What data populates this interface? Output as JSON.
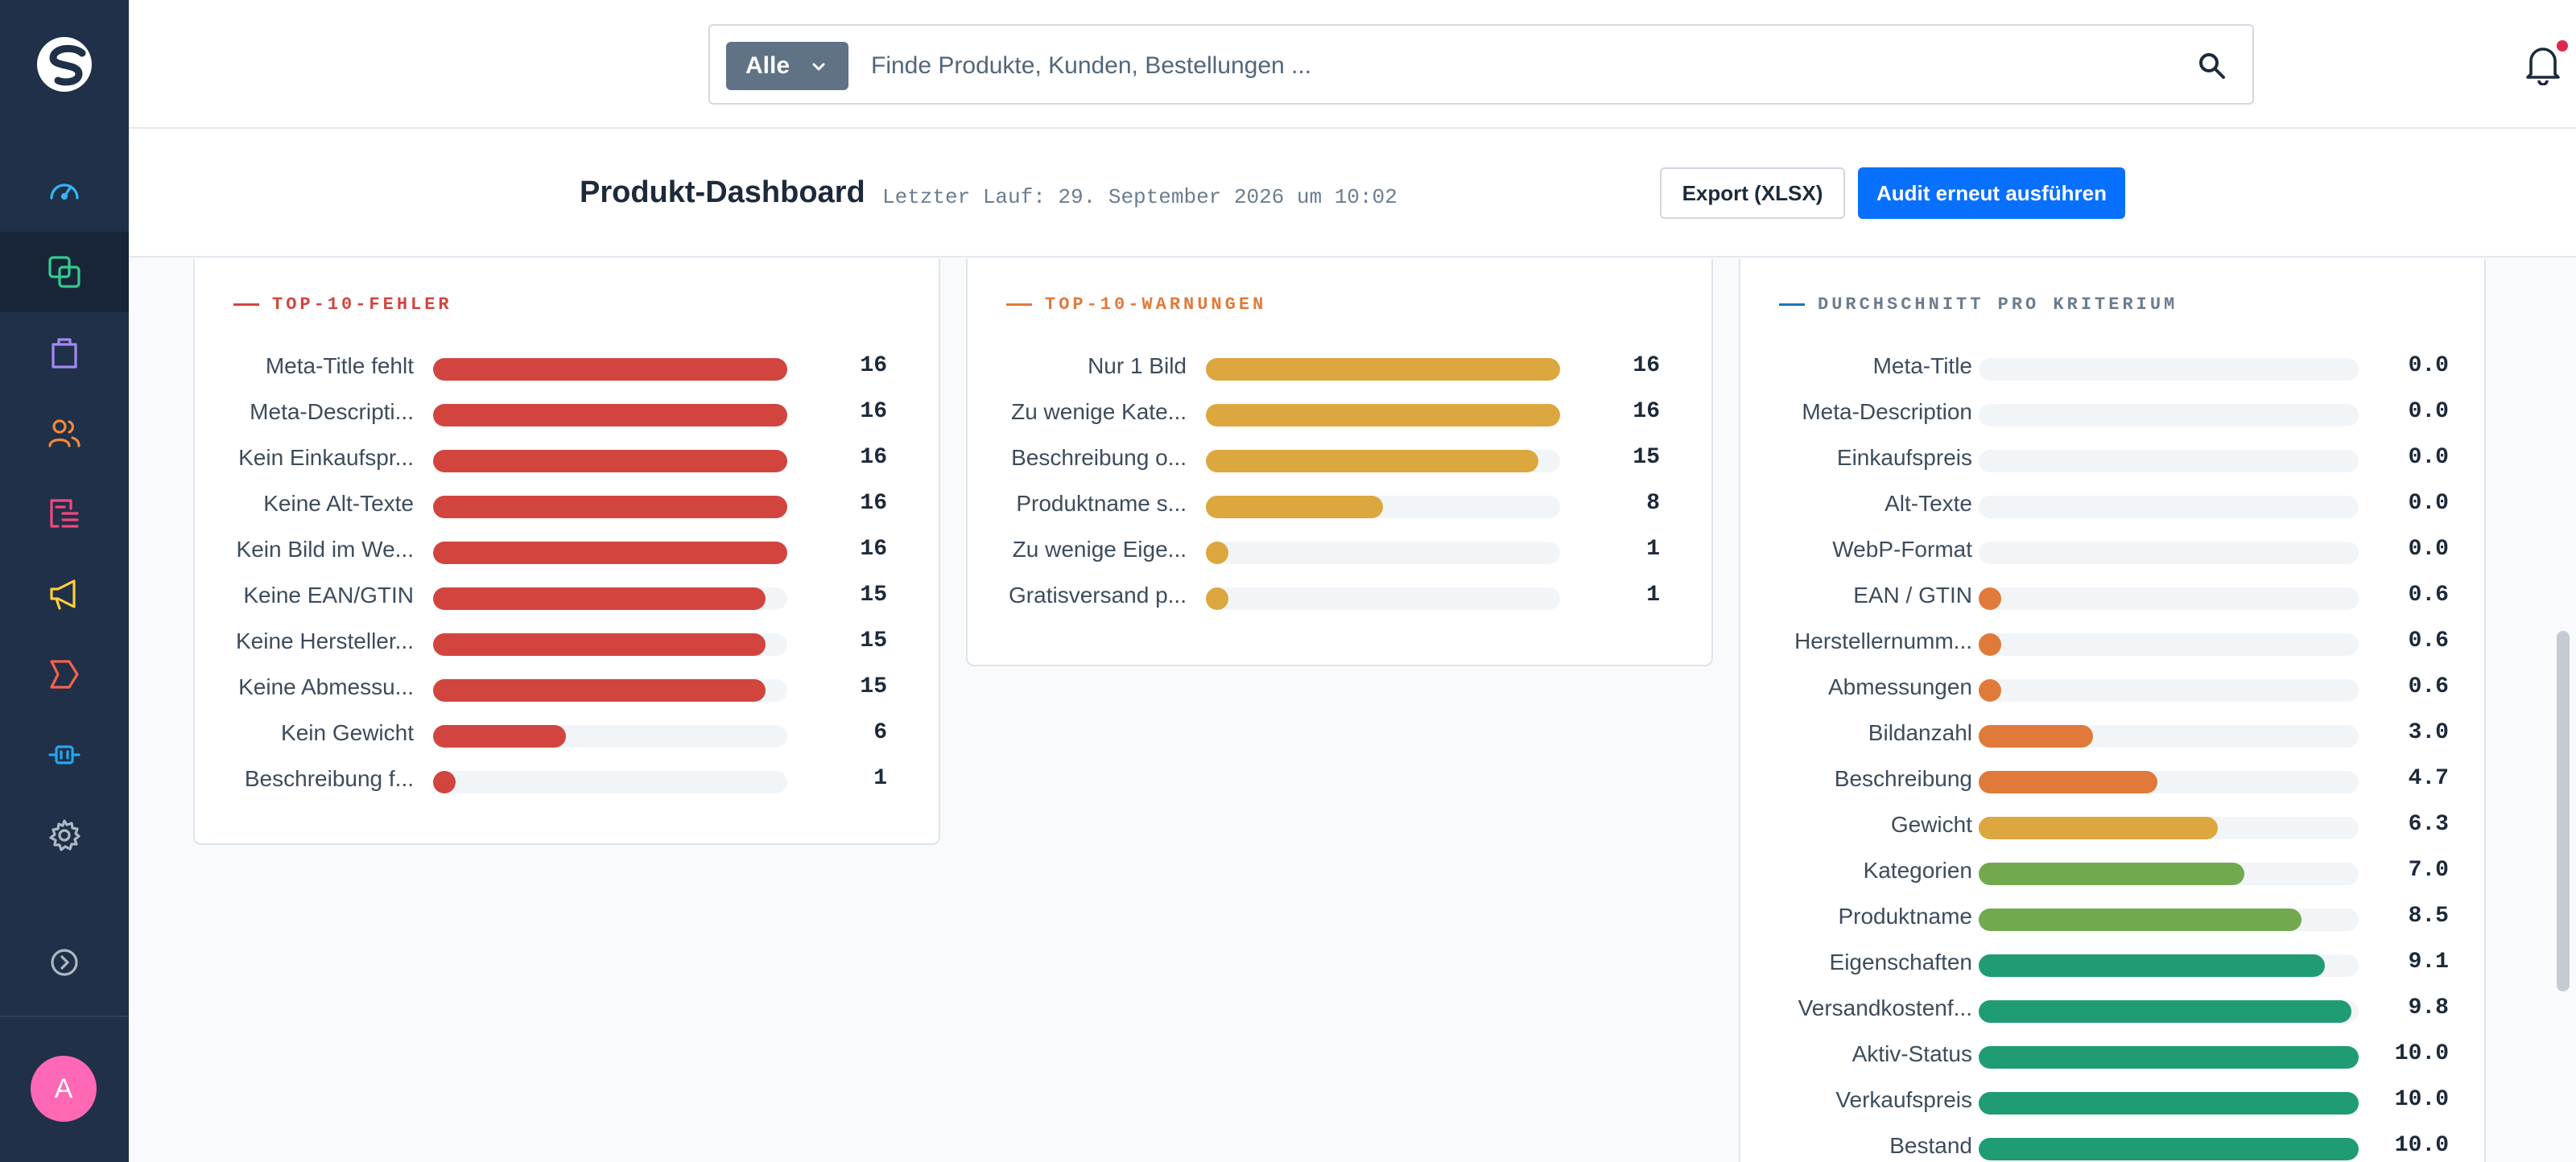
{
  "search": {
    "scope": "Alle",
    "placeholder": "Finde Produkte, Kunden, Bestellungen ..."
  },
  "user": {
    "initial": "A"
  },
  "header": {
    "title": "Produkt-Dashboard",
    "last_run": "Letzter Lauf: 29. September 2026 um 10:02",
    "export_label": "Export (XLSX)",
    "audit_label": "Audit erneut ausführen"
  },
  "colors": {
    "sidebar": "#1f3048",
    "accent": "#0870ff",
    "error": "#d2453f",
    "warning": "#dca73e",
    "avg_dash": "#1a73b6"
  },
  "sidebar": {
    "items": [
      {
        "icon": "dashboard-gauge-icon",
        "active": false
      },
      {
        "icon": "catalogue-icon",
        "active": true
      },
      {
        "icon": "orders-bag-icon",
        "active": false
      },
      {
        "icon": "customers-icon",
        "active": false
      },
      {
        "icon": "content-list-icon",
        "active": false
      },
      {
        "icon": "marketing-megaphone-icon",
        "active": false
      },
      {
        "icon": "flows-icon",
        "active": false
      },
      {
        "icon": "extensions-plug-icon",
        "active": false
      },
      {
        "icon": "settings-gear-icon",
        "active": false
      },
      {
        "icon": "expand-arrow-icon",
        "active": false
      }
    ]
  },
  "panels": {
    "errors": {
      "title": "TOP-10-FEHLER",
      "max": 16,
      "items": [
        {
          "label": "Meta-Title fehlt",
          "value": 16
        },
        {
          "label": "Meta-Descripti...",
          "value": 16
        },
        {
          "label": "Kein Einkaufspr...",
          "value": 16
        },
        {
          "label": "Keine Alt-Texte",
          "value": 16
        },
        {
          "label": "Kein Bild im We...",
          "value": 16
        },
        {
          "label": "Keine EAN/GTIN",
          "value": 15
        },
        {
          "label": "Keine Hersteller...",
          "value": 15
        },
        {
          "label": "Keine Abmessu...",
          "value": 15
        },
        {
          "label": "Kein Gewicht",
          "value": 6
        },
        {
          "label": "Beschreibung f...",
          "value": 1
        }
      ]
    },
    "warnings": {
      "title": "TOP-10-WARNUNGEN",
      "max": 16,
      "items": [
        {
          "label": "Nur 1 Bild",
          "value": 16
        },
        {
          "label": "Zu wenige Kate...",
          "value": 16
        },
        {
          "label": "Beschreibung o...",
          "value": 15
        },
        {
          "label": "Produktname s...",
          "value": 8
        },
        {
          "label": "Zu wenige Eige...",
          "value": 1
        },
        {
          "label": "Gratisversand p...",
          "value": 1
        }
      ]
    },
    "averages": {
      "title": "DURCHSCHNITT PRO KRITERIUM",
      "max": 10,
      "items": [
        {
          "label": "Meta-Title",
          "value": "0.0",
          "color": "#e07a3a"
        },
        {
          "label": "Meta-Description",
          "value": "0.0",
          "color": "#e07a3a"
        },
        {
          "label": "Einkaufspreis",
          "value": "0.0",
          "color": "#e07a3a"
        },
        {
          "label": "Alt-Texte",
          "value": "0.0",
          "color": "#e07a3a"
        },
        {
          "label": "WebP-Format",
          "value": "0.0",
          "color": "#e07a3a"
        },
        {
          "label": "EAN / GTIN",
          "value": "0.6",
          "color": "#e07a3a"
        },
        {
          "label": "Herstellernumm...",
          "value": "0.6",
          "color": "#e07a3a"
        },
        {
          "label": "Abmessungen",
          "value": "0.6",
          "color": "#e07a3a"
        },
        {
          "label": "Bildanzahl",
          "value": "3.0",
          "color": "#e07a3a"
        },
        {
          "label": "Beschreibung",
          "value": "4.7",
          "color": "#e07a3a"
        },
        {
          "label": "Gewicht",
          "value": "6.3",
          "color": "#dca73e"
        },
        {
          "label": "Kategorien",
          "value": "7.0",
          "color": "#72a94e"
        },
        {
          "label": "Produktname",
          "value": "8.5",
          "color": "#72a94e"
        },
        {
          "label": "Eigenschaften",
          "value": "9.1",
          "color": "#1f9c74"
        },
        {
          "label": "Versandkostenf...",
          "value": "9.8",
          "color": "#1f9c74"
        },
        {
          "label": "Aktiv-Status",
          "value": "10.0",
          "color": "#1f9c74"
        },
        {
          "label": "Verkaufspreis",
          "value": "10.0",
          "color": "#1f9c74"
        },
        {
          "label": "Bestand",
          "value": "10.0",
          "color": "#1f9c74"
        }
      ]
    }
  }
}
